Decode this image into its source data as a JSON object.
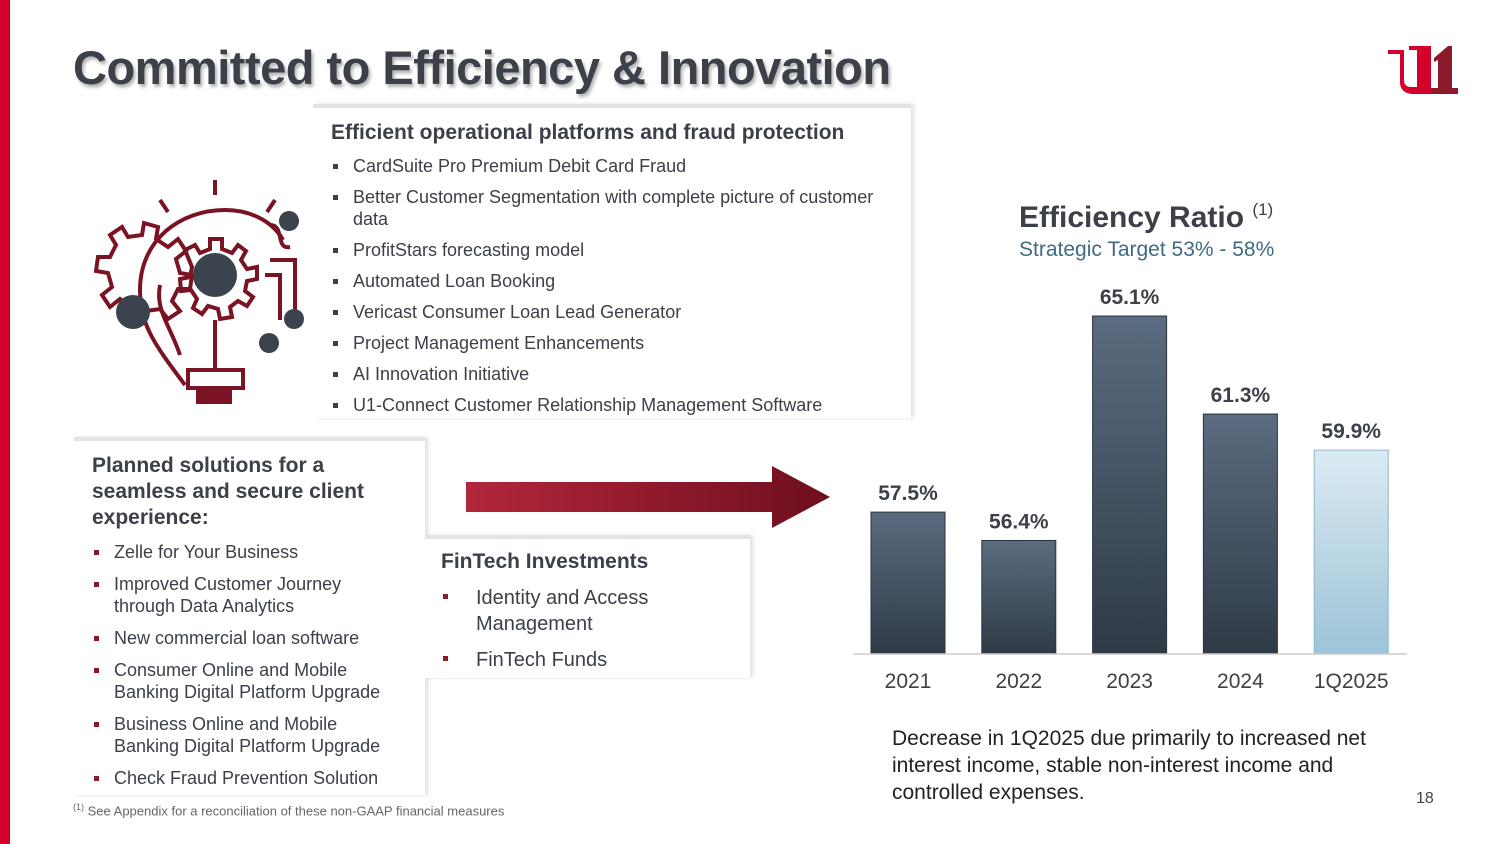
{
  "title": "Committed to Efficiency & Innovation",
  "logo_text": "u1",
  "box1": {
    "heading": "Efficient operational platforms and fraud protection",
    "items": [
      "CardSuite Pro Premium Debit Card Fraud",
      "Better Customer Segmentation with complete picture of customer data",
      "ProfitStars forecasting model",
      "Automated Loan Booking",
      "Vericast Consumer Loan Lead Generator",
      "Project Management Enhancements",
      "AI Innovation Initiative",
      "U1-Connect Customer Relationship Management Software"
    ]
  },
  "box2": {
    "heading": "Planned solutions for a seamless and secure client experience:",
    "items": [
      "Zelle for Your Business",
      "Improved Customer Journey through Data Analytics",
      "New commercial loan software",
      "Consumer Online and Mobile Banking Digital Platform Upgrade",
      "Business Online and Mobile Banking Digital Platform Upgrade",
      "Check Fraud Prevention Solution"
    ]
  },
  "box3": {
    "heading": "FinTech Investments",
    "items": [
      "Identity and Access Management",
      "FinTech Funds"
    ]
  },
  "chart_data": {
    "type": "bar",
    "title": "Efficiency Ratio",
    "title_note": "(1)",
    "subtitle": "Strategic Target 53% - 58%",
    "categories": [
      "2021",
      "2022",
      "2023",
      "2024",
      "1Q2025"
    ],
    "values": [
      57.5,
      56.4,
      65.1,
      61.3,
      59.9
    ],
    "labels": [
      "57.5%",
      "56.4%",
      "65.1%",
      "61.3%",
      "59.9%"
    ],
    "ylim": [
      52,
      66
    ],
    "grid": false,
    "colors": {
      "bar": "#3b4a5a",
      "highlight": "#b9d7e6"
    }
  },
  "note": "Decrease in 1Q2025 due primarily to increased net interest income, stable non-interest income and controlled expenses.",
  "page_number": "18",
  "footnote": {
    "marker": "(1)",
    "text": "See Appendix for a reconciliation of these non-GAAP financial measures"
  }
}
